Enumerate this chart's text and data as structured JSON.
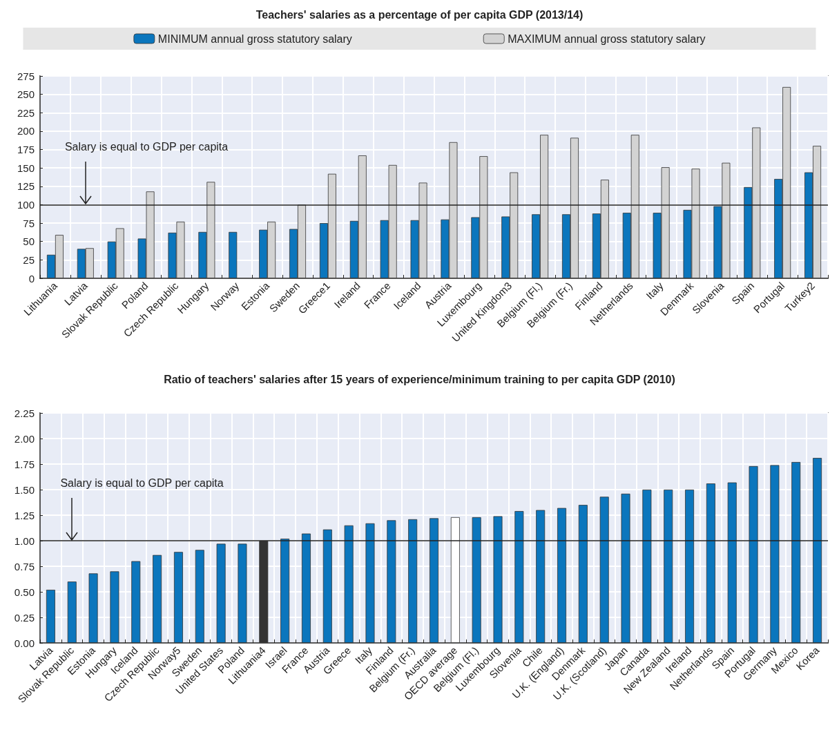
{
  "chart_data": [
    {
      "type": "bar",
      "title": "Teachers' salaries as a percentage of per capita GDP (2013/14)",
      "categories": [
        "Lithuania",
        "Latvia",
        "Slovak Republic",
        "Poland",
        "Czech Republic",
        "Hungary",
        "Norway",
        "Estonia",
        "Sweden",
        "Greece1",
        "Ireland",
        "France",
        "Iceland",
        "Austria",
        "Luxembourg",
        "United Kingdom3",
        "Belgium (Fl.)",
        "Belgium (Fr.)",
        "Finland",
        "Netherlands",
        "Italy",
        "Denmark",
        "Slovenia",
        "Spain",
        "Portugal",
        "Turkey2"
      ],
      "series": [
        {
          "name": "MINIMUM annual gross statutory salary",
          "color": "#0b76bd",
          "values": [
            32,
            40,
            50,
            54,
            62,
            63,
            63,
            66,
            67,
            75,
            78,
            79,
            79,
            80,
            83,
            84,
            87,
            87,
            88,
            89,
            89,
            93,
            98,
            124,
            135,
            144
          ]
        },
        {
          "name": "MAXIMUM annual gross statutory salary",
          "color": "#d3d3d3",
          "values": [
            59,
            41,
            68,
            118,
            77,
            131,
            null,
            77,
            100,
            142,
            167,
            154,
            130,
            185,
            166,
            144,
            195,
            191,
            134,
            195,
            151,
            149,
            157,
            205,
            260,
            180
          ]
        }
      ],
      "ylim": [
        0,
        275
      ],
      "yticks": [
        0,
        25,
        50,
        75,
        100,
        125,
        150,
        175,
        200,
        225,
        250,
        275
      ],
      "ref_lines": [
        {
          "axis": "y",
          "value": 100,
          "label": "Salary is equal to GDP per capita"
        }
      ],
      "grid": true,
      "legend": "top"
    },
    {
      "type": "bar",
      "title": "Ratio of teachers' salaries after 15 years of experience/minimum training to per capita GDP (2010)",
      "categories": [
        "Latvia",
        "Slovak Republic",
        "Estonia",
        "Hungary",
        "Iceland",
        "Czech Republic",
        "Norway5",
        "Sweden",
        "United States",
        "Poland",
        "Lithuania4",
        "Israel",
        "France",
        "Austria",
        "Greece",
        "Italy",
        "Finland",
        "Belgium (Fr.)",
        "Australia",
        "OECD average",
        "Belgium (Fl.)",
        "Luxembourg",
        "Slovenia",
        "Chile",
        "U.K. (England)",
        "Denmark",
        "U.K. (Scotland)",
        "Japan",
        "Canada",
        "New Zealand",
        "Ireland",
        "Netherlands",
        "Spain",
        "Portugal",
        "Germany",
        "Mexico",
        "Korea"
      ],
      "values": [
        0.52,
        0.6,
        0.68,
        0.7,
        0.8,
        0.86,
        0.89,
        0.91,
        0.97,
        0.97,
        1.0,
        1.02,
        1.07,
        1.11,
        1.15,
        1.17,
        1.2,
        1.21,
        1.22,
        1.23,
        1.23,
        1.24,
        1.29,
        1.3,
        1.32,
        1.35,
        1.43,
        1.46,
        1.5,
        1.5,
        1.5,
        1.56,
        1.57,
        1.73,
        1.74,
        1.77,
        1.81
      ],
      "colors": [
        "#0b76bd",
        "#0b76bd",
        "#0b76bd",
        "#0b76bd",
        "#0b76bd",
        "#0b76bd",
        "#0b76bd",
        "#0b76bd",
        "#0b76bd",
        "#0b76bd",
        "#333333",
        "#0b76bd",
        "#0b76bd",
        "#0b76bd",
        "#0b76bd",
        "#0b76bd",
        "#0b76bd",
        "#0b76bd",
        "#0b76bd",
        "#ffffff",
        "#0b76bd",
        "#0b76bd",
        "#0b76bd",
        "#0b76bd",
        "#0b76bd",
        "#0b76bd",
        "#0b76bd",
        "#0b76bd",
        "#0b76bd",
        "#0b76bd",
        "#0b76bd",
        "#0b76bd",
        "#0b76bd",
        "#0b76bd",
        "#0b76bd",
        "#0b76bd",
        "#0b76bd"
      ],
      "ylim": [
        0,
        2.25
      ],
      "yticks": [
        {
          "value": 0,
          "label": "0.00"
        },
        0.25,
        {
          "value": 0.5,
          "label": "0.50"
        },
        0.75,
        {
          "value": 1,
          "label": "1.00"
        },
        1.25,
        {
          "value": 1.5,
          "label": "1.50"
        },
        1.75,
        {
          "value": 2,
          "label": "2.00"
        },
        2.25
      ],
      "ref_lines": [
        {
          "axis": "y",
          "value": 1,
          "label": "Salary is equal to GDP per capita"
        }
      ],
      "grid": true
    }
  ]
}
